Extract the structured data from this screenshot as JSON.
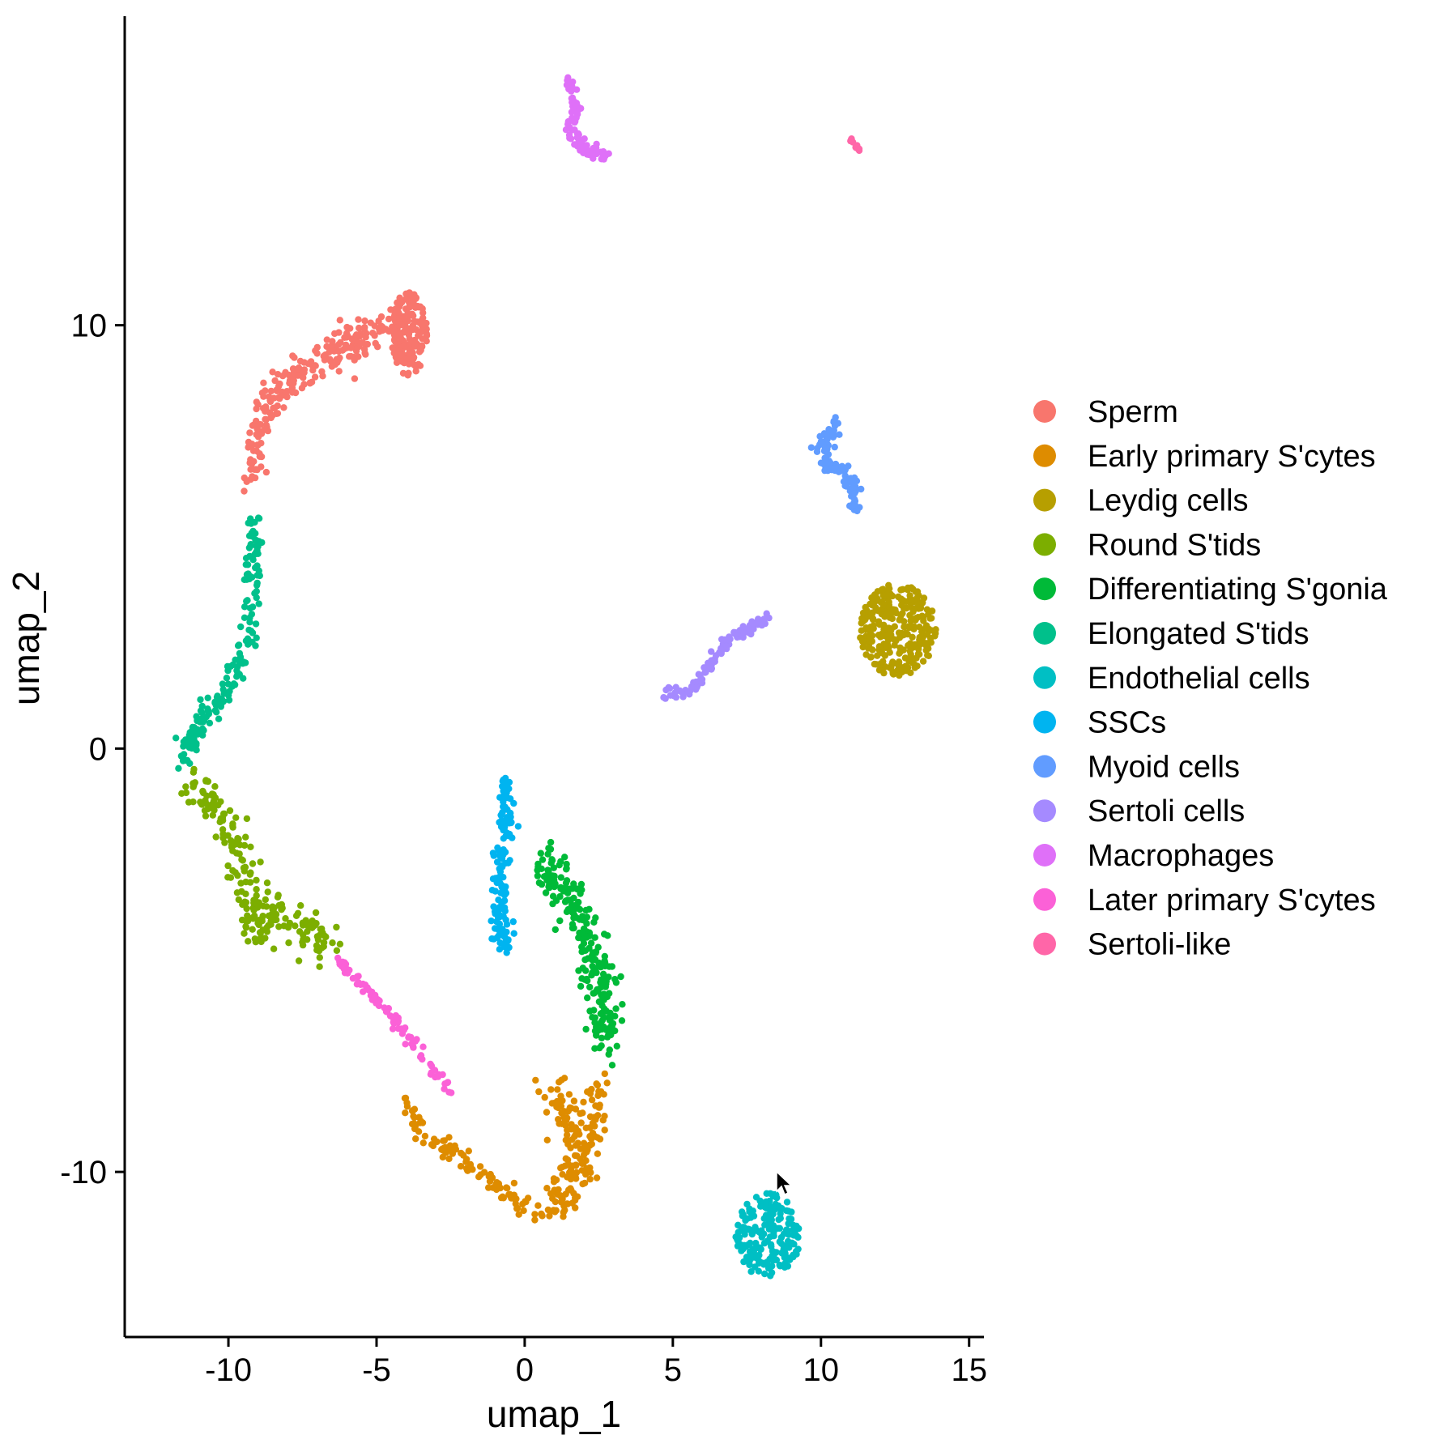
{
  "chart_data": {
    "type": "scatter",
    "title": "",
    "xlabel": "umap_1",
    "ylabel": "umap_2",
    "xlim": [
      -13.5,
      15.5
    ],
    "ylim": [
      -13.9,
      17.3
    ],
    "x_ticks": [
      -10,
      -5,
      0,
      5,
      10,
      15
    ],
    "x_tick_labels": [
      "-10",
      "-5",
      "0",
      "5",
      "10",
      "15"
    ],
    "y_ticks": [
      -10,
      0,
      10
    ],
    "y_tick_labels": [
      "-10",
      "0",
      "10"
    ],
    "grid": false,
    "legend_position": "right",
    "series": [
      {
        "name": "Sperm",
        "color": "#F8766D",
        "clusters": [
          {
            "path": [
              [
                -9.3,
                6.3
              ],
              [
                -9.0,
                7.5
              ],
              [
                -8.3,
                8.5
              ],
              [
                -7.0,
                9.1
              ],
              [
                -5.8,
                9.6
              ],
              [
                -4.6,
                10.0
              ]
            ],
            "spread": 0.45,
            "n": 240
          },
          {
            "center": [
              -3.9,
              9.8
            ],
            "rx": 0.6,
            "ry": 1.0,
            "n": 160
          }
        ]
      },
      {
        "name": "Early primary S'cytes",
        "color": "#DE8C00",
        "clusters": [
          {
            "path": [
              [
                -4.0,
                -8.2
              ],
              [
                -3.4,
                -9.2
              ],
              [
                -2.4,
                -9.6
              ],
              [
                -1.2,
                -10.2
              ],
              [
                -0.3,
                -10.7
              ],
              [
                0.7,
                -11.0
              ]
            ],
            "spread": 0.25,
            "n": 100
          },
          {
            "path": [
              [
                1.0,
                -7.8
              ],
              [
                1.3,
                -8.6
              ],
              [
                1.7,
                -9.4
              ],
              [
                1.5,
                -10.4
              ],
              [
                1.0,
                -10.9
              ]
            ],
            "spread": 0.45,
            "n": 120
          },
          {
            "path": [
              [
                2.4,
                -7.8
              ],
              [
                2.3,
                -9.0
              ],
              [
                2.0,
                -10.2
              ]
            ],
            "spread": 0.35,
            "n": 60
          }
        ]
      },
      {
        "name": "Leydig cells",
        "color": "#B79F00",
        "clusters": [
          {
            "center": [
              12.6,
              2.8
            ],
            "rx": 1.3,
            "ry": 1.1,
            "n": 280
          }
        ]
      },
      {
        "name": "Round S'tids",
        "color": "#7CAE00",
        "clusters": [
          {
            "path": [
              [
                -11.3,
                -0.8
              ],
              [
                -10.3,
                -1.5
              ],
              [
                -9.3,
                -3.0
              ],
              [
                -9.2,
                -4.3
              ],
              [
                -8.3,
                -3.8
              ],
              [
                -7.2,
                -4.3
              ],
              [
                -6.5,
                -4.6
              ]
            ],
            "spread": 0.55,
            "n": 220
          }
        ]
      },
      {
        "name": "Differentiating S'gonia",
        "color": "#00BA38",
        "clusters": [
          {
            "path": [
              [
                0.5,
                -2.6
              ],
              [
                1.5,
                -3.5
              ],
              [
                2.2,
                -4.6
              ],
              [
                2.6,
                -5.8
              ],
              [
                2.8,
                -6.9
              ]
            ],
            "spread": 0.55,
            "n": 230
          }
        ]
      },
      {
        "name": "Elongated S'tids",
        "color": "#00C08B",
        "clusters": [
          {
            "path": [
              [
                -9.1,
                5.4
              ],
              [
                -9.2,
                4.0
              ],
              [
                -9.3,
                2.6
              ],
              [
                -10.0,
                1.4
              ],
              [
                -11.0,
                0.6
              ],
              [
                -11.6,
                -0.2
              ]
            ],
            "spread": 0.3,
            "n": 180
          }
        ]
      },
      {
        "name": "Endothelial cells",
        "color": "#00BFC4",
        "clusters": [
          {
            "center": [
              8.2,
              -11.5
            ],
            "rx": 1.1,
            "ry": 1.0,
            "n": 200
          }
        ]
      },
      {
        "name": "SSCs",
        "color": "#00B4F0",
        "clusters": [
          {
            "path": [
              [
                -0.7,
                -0.6
              ],
              [
                -0.6,
                -1.8
              ],
              [
                -0.9,
                -3.0
              ],
              [
                -0.8,
                -4.2
              ],
              [
                -0.6,
                -4.8
              ]
            ],
            "spread": 0.3,
            "n": 130
          }
        ]
      },
      {
        "name": "Myoid cells",
        "color": "#619CFF",
        "clusters": [
          {
            "path": [
              [
                10.6,
                7.7
              ],
              [
                10.0,
                7.2
              ],
              [
                10.1,
                6.7
              ],
              [
                10.7,
                6.6
              ],
              [
                11.1,
                6.2
              ],
              [
                11.1,
                5.7
              ]
            ],
            "spread": 0.22,
            "n": 110
          }
        ]
      },
      {
        "name": "Sertoli cells",
        "color": "#A58AFF",
        "clusters": [
          {
            "path": [
              [
                4.8,
                1.3
              ],
              [
                5.5,
                1.3
              ],
              [
                6.2,
                1.9
              ],
              [
                6.9,
                2.6
              ],
              [
                7.5,
                2.8
              ],
              [
                8.2,
                3.1
              ]
            ],
            "spread": 0.15,
            "n": 110
          }
        ]
      },
      {
        "name": "Macrophages",
        "color": "#DF70F8",
        "clusters": [
          {
            "path": [
              [
                1.5,
                15.8
              ],
              [
                1.7,
                15.2
              ],
              [
                1.6,
                14.5
              ],
              [
                2.1,
                14.1
              ],
              [
                2.8,
                14.0
              ]
            ],
            "spread": 0.18,
            "n": 90
          }
        ]
      },
      {
        "name": "Later primary S'cytes",
        "color": "#FB61D7",
        "clusters": [
          {
            "path": [
              [
                -6.3,
                -5.0
              ],
              [
                -5.4,
                -5.6
              ],
              [
                -4.6,
                -6.2
              ],
              [
                -3.7,
                -7.0
              ],
              [
                -2.5,
                -8.2
              ]
            ],
            "spread": 0.15,
            "n": 90
          }
        ]
      },
      {
        "name": "Sertoli-like",
        "color": "#FF66A8",
        "clusters": [
          {
            "path": [
              [
                11.0,
                14.4
              ],
              [
                11.3,
                14.1
              ]
            ],
            "spread": 0.06,
            "n": 10
          }
        ]
      }
    ]
  }
}
